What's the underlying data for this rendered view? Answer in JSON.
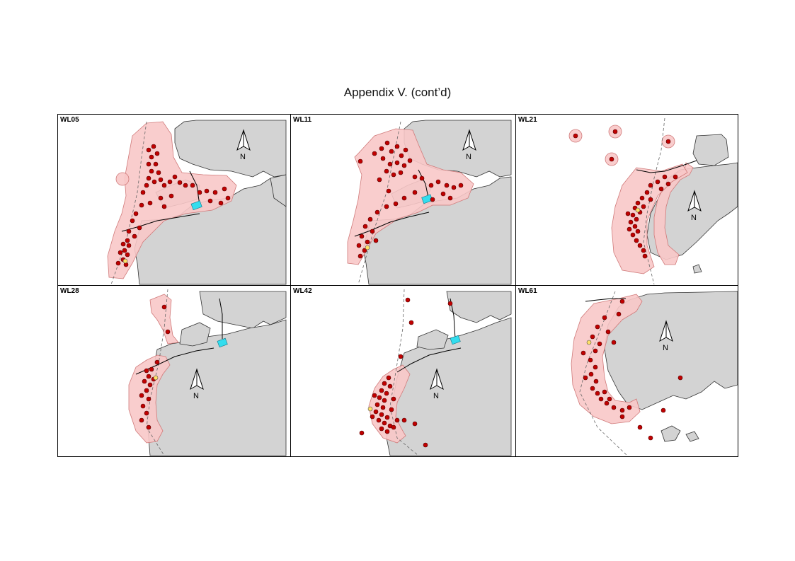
{
  "title": "Appendix V.  (cont’d)",
  "north_label": "N",
  "colors": {
    "land": "#d3d3d3",
    "coast": "#333333",
    "range": "#f8c8c8",
    "range_edge": "#d07a7a",
    "sighting": "#c00000",
    "sighting_edge": "#550000",
    "highlight": "#ffe066",
    "reclaimed_area": "#33ddee",
    "boundary_line": "#666666",
    "road": "#000000"
  },
  "panels": [
    {
      "id": "WL05",
      "label": "WL05"
    },
    {
      "id": "WL11",
      "label": "WL11"
    },
    {
      "id": "WL21",
      "label": "WL21"
    },
    {
      "id": "WL28",
      "label": "WL28"
    },
    {
      "id": "WL42",
      "label": "WL42"
    },
    {
      "id": "WL61",
      "label": "WL61"
    }
  ]
}
